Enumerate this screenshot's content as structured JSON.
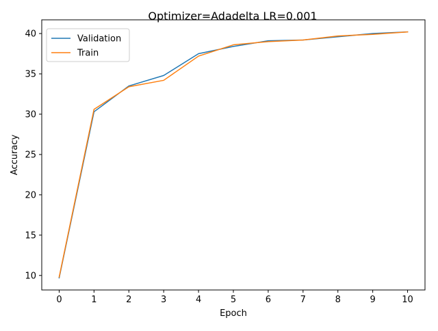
{
  "chart_data": {
    "type": "line",
    "title": "Optimizer=Adadelta LR=0.001",
    "xlabel": "Epoch",
    "ylabel": "Accuracy",
    "x": [
      0,
      1,
      2,
      3,
      4,
      5,
      6,
      7,
      8,
      9,
      10
    ],
    "xticks": [
      "0",
      "1",
      "2",
      "3",
      "4",
      "5",
      "6",
      "7",
      "8",
      "9",
      "10"
    ],
    "yticks": [
      "10",
      "15",
      "20",
      "25",
      "30",
      "35",
      "40"
    ],
    "xlim": [
      -0.5,
      10.5
    ],
    "ylim": [
      8.2,
      41.7
    ],
    "grid": false,
    "legend_position": "upper-left",
    "series": [
      {
        "name": "Validation",
        "color": "#1f77b4",
        "values": [
          9.7,
          30.3,
          33.5,
          34.8,
          37.5,
          38.4,
          39.1,
          39.2,
          39.6,
          40.0,
          40.2
        ]
      },
      {
        "name": "Train",
        "color": "#ff7f0e",
        "values": [
          9.8,
          30.6,
          33.4,
          34.2,
          37.2,
          38.6,
          39.0,
          39.2,
          39.7,
          39.9,
          40.2
        ]
      }
    ]
  }
}
